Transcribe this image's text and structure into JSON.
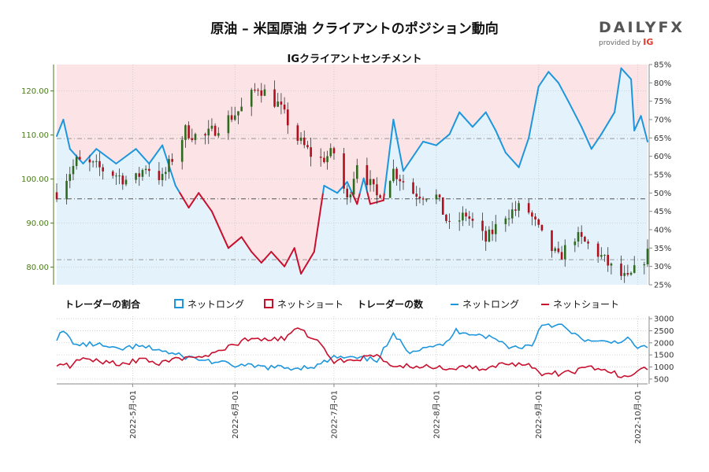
{
  "header": {
    "title": "原油 – 米国原油 クライアントのポジション動向",
    "subtitle": "IGクライアントセンチメント",
    "logo_main": "DAILYFX",
    "logo_sub": "provided by",
    "logo_ig": "IG"
  },
  "legend": {
    "ratio_heading": "トレーダーの割合",
    "count_heading": "トレーダーの数",
    "net_long": "ネットロング",
    "net_short": "ネットショート"
  },
  "colors": {
    "long": "#1e96dc",
    "short": "#c8102e",
    "long_fill": "#e3f2fb",
    "short_fill": "#fbe3e6",
    "price_axis": "#4a7a1c"
  },
  "chart_data": [
    {
      "type": "candlestick",
      "name": "price",
      "x_range": [
        "2022-04-08",
        "2022-10-04"
      ],
      "ylim": [
        76,
        126
      ],
      "yticks": [
        "80.00",
        "90.00",
        "100.00",
        "110.00",
        "120.00"
      ],
      "ytick_values": [
        80,
        90,
        100,
        110,
        120
      ],
      "reference_lines": [
        95.5,
        81.7,
        109.2
      ],
      "anchors": [
        [
          "2022-04-08",
          97
        ],
        [
          "2022-04-14",
          104
        ],
        [
          "2022-04-19",
          103
        ],
        [
          "2022-04-26",
          101
        ],
        [
          "2022-05-01",
          99
        ],
        [
          "2022-05-05",
          103
        ],
        [
          "2022-05-10",
          100
        ],
        [
          "2022-05-17",
          111
        ],
        [
          "2022-05-22",
          109
        ],
        [
          "2022-05-27",
          112
        ],
        [
          "2022-06-03",
          116
        ],
        [
          "2022-06-08",
          121
        ],
        [
          "2022-06-14",
          117
        ],
        [
          "2022-06-20",
          109
        ],
        [
          "2022-06-26",
          104
        ],
        [
          "2022-07-01",
          106
        ],
        [
          "2022-07-05",
          95
        ],
        [
          "2022-07-08",
          104
        ],
        [
          "2022-07-14",
          96
        ],
        [
          "2022-07-19",
          102
        ],
        [
          "2022-07-25",
          97
        ],
        [
          "2022-08-01",
          96
        ],
        [
          "2022-08-05",
          89
        ],
        [
          "2022-08-10",
          92
        ],
        [
          "2022-08-16",
          86
        ],
        [
          "2022-08-22",
          92
        ],
        [
          "2022-08-28",
          94
        ],
        [
          "2022-09-02",
          87
        ],
        [
          "2022-09-07",
          82
        ],
        [
          "2022-09-12",
          87
        ],
        [
          "2022-09-18",
          84
        ],
        [
          "2022-09-24",
          79
        ],
        [
          "2022-09-28",
          77
        ],
        [
          "2022-10-04",
          83
        ]
      ]
    },
    {
      "type": "line",
      "name": "ratio",
      "right_axis_range": [
        25,
        85
      ],
      "right_ticks": [
        "25%",
        "30%",
        "35%",
        "40%",
        "45%",
        "50%",
        "55%",
        "60%",
        "65%",
        "70%",
        "75%",
        "80%",
        "85%"
      ],
      "right_tick_values": [
        25,
        30,
        35,
        40,
        45,
        50,
        55,
        60,
        65,
        70,
        75,
        80,
        85
      ],
      "series": [
        {
          "name": "ネットロング",
          "unit": "%",
          "points": [
            [
              "2022-04-08",
              65.5
            ],
            [
              "2022-04-10",
              70
            ],
            [
              "2022-04-12",
              62
            ],
            [
              "2022-04-16",
              58
            ],
            [
              "2022-04-20",
              62
            ],
            [
              "2022-04-26",
              58
            ],
            [
              "2022-05-02",
              62
            ],
            [
              "2022-05-06",
              58
            ],
            [
              "2022-05-10",
              63
            ],
            [
              "2022-05-14",
              52
            ],
            [
              "2022-05-18",
              46
            ],
            [
              "2022-05-21",
              50
            ],
            [
              "2022-05-25",
              45
            ],
            [
              "2022-05-30",
              35
            ],
            [
              "2022-06-03",
              38
            ],
            [
              "2022-06-06",
              34
            ],
            [
              "2022-06-09",
              31
            ],
            [
              "2022-06-12",
              34
            ],
            [
              "2022-06-16",
              30
            ],
            [
              "2022-06-19",
              35
            ],
            [
              "2022-06-21",
              28
            ],
            [
              "2022-06-25",
              34
            ],
            [
              "2022-06-28",
              52
            ],
            [
              "2022-07-02",
              50
            ],
            [
              "2022-07-05",
              53
            ],
            [
              "2022-07-08",
              47
            ],
            [
              "2022-07-10",
              54
            ],
            [
              "2022-07-12",
              47
            ],
            [
              "2022-07-16",
              48
            ],
            [
              "2022-07-19",
              70
            ],
            [
              "2022-07-22",
              56
            ],
            [
              "2022-07-28",
              64
            ],
            [
              "2022-08-01",
              63
            ],
            [
              "2022-08-05",
              66
            ],
            [
              "2022-08-08",
              72
            ],
            [
              "2022-08-12",
              68
            ],
            [
              "2022-08-16",
              72
            ],
            [
              "2022-08-19",
              67
            ],
            [
              "2022-08-22",
              61
            ],
            [
              "2022-08-26",
              57
            ],
            [
              "2022-08-29",
              65
            ],
            [
              "2022-09-01",
              79
            ],
            [
              "2022-09-04",
              83
            ],
            [
              "2022-09-07",
              80
            ],
            [
              "2022-09-10",
              75
            ],
            [
              "2022-09-14",
              68
            ],
            [
              "2022-09-17",
              62
            ],
            [
              "2022-09-20",
              66
            ],
            [
              "2022-09-24",
              72
            ],
            [
              "2022-09-26",
              84
            ],
            [
              "2022-09-29",
              81
            ],
            [
              "2022-09-30",
              67
            ],
            [
              "2022-10-02",
              71
            ],
            [
              "2022-10-04",
              64
            ]
          ]
        },
        {
          "name": "ネットショート",
          "unit": "%",
          "derived": "100 - ネットロング"
        }
      ]
    },
    {
      "type": "line",
      "name": "trader_count",
      "ylim": [
        300,
        3100
      ],
      "yticks": [
        "500",
        "1000",
        "1500",
        "2000",
        "2500",
        "3000"
      ],
      "ytick_values": [
        500,
        1000,
        1500,
        2000,
        2500,
        3000
      ],
      "series": [
        {
          "name": "ネットロング",
          "points": [
            [
              "2022-04-08",
              2200
            ],
            [
              "2022-04-10",
              2450
            ],
            [
              "2022-04-14",
              1900
            ],
            [
              "2022-04-20",
              1950
            ],
            [
              "2022-04-26",
              1700
            ],
            [
              "2022-05-02",
              1850
            ],
            [
              "2022-05-08",
              1750
            ],
            [
              "2022-05-14",
              1500
            ],
            [
              "2022-05-20",
              1350
            ],
            [
              "2022-05-26",
              1200
            ],
            [
              "2022-06-02",
              1050
            ],
            [
              "2022-06-10",
              1000
            ],
            [
              "2022-06-18",
              950
            ],
            [
              "2022-06-26",
              1050
            ],
            [
              "2022-07-01",
              1400
            ],
            [
              "2022-07-08",
              1350
            ],
            [
              "2022-07-14",
              1300
            ],
            [
              "2022-07-19",
              2300
            ],
            [
              "2022-07-24",
              1650
            ],
            [
              "2022-07-30",
              1900
            ],
            [
              "2022-08-03",
              1850
            ],
            [
              "2022-08-07",
              2500
            ],
            [
              "2022-08-12",
              2400
            ],
            [
              "2022-08-18",
              2200
            ],
            [
              "2022-08-24",
              1800
            ],
            [
              "2022-08-30",
              1900
            ],
            [
              "2022-09-02",
              2800
            ],
            [
              "2022-09-08",
              2700
            ],
            [
              "2022-09-12",
              2300
            ],
            [
              "2022-09-18",
              2000
            ],
            [
              "2022-09-24",
              2050
            ],
            [
              "2022-09-28",
              2150
            ],
            [
              "2022-09-30",
              1850
            ],
            [
              "2022-10-04",
              1800
            ]
          ]
        },
        {
          "name": "ネットショート",
          "points": [
            [
              "2022-04-08",
              1150
            ],
            [
              "2022-04-12",
              1050
            ],
            [
              "2022-04-16",
              1350
            ],
            [
              "2022-04-22",
              1200
            ],
            [
              "2022-04-28",
              1150
            ],
            [
              "2022-05-04",
              1300
            ],
            [
              "2022-05-10",
              1150
            ],
            [
              "2022-05-16",
              1350
            ],
            [
              "2022-05-22",
              1450
            ],
            [
              "2022-05-28",
              1700
            ],
            [
              "2022-06-04",
              2100
            ],
            [
              "2022-06-10",
              2150
            ],
            [
              "2022-06-16",
              2200
            ],
            [
              "2022-06-20",
              2600
            ],
            [
              "2022-06-26",
              2050
            ],
            [
              "2022-07-01",
              1250
            ],
            [
              "2022-07-08",
              1350
            ],
            [
              "2022-07-14",
              1450
            ],
            [
              "2022-07-19",
              1000
            ],
            [
              "2022-07-25",
              1050
            ],
            [
              "2022-08-01",
              950
            ],
            [
              "2022-08-08",
              1000
            ],
            [
              "2022-08-14",
              950
            ],
            [
              "2022-08-20",
              1050
            ],
            [
              "2022-08-26",
              1150
            ],
            [
              "2022-08-30",
              1050
            ],
            [
              "2022-09-02",
              700
            ],
            [
              "2022-09-10",
              750
            ],
            [
              "2022-09-16",
              1000
            ],
            [
              "2022-09-22",
              800
            ],
            [
              "2022-09-28",
              600
            ],
            [
              "2022-10-01",
              900
            ],
            [
              "2022-10-04",
              950
            ]
          ]
        }
      ]
    }
  ],
  "x_axis": {
    "ticks": [
      "2022-5月-01",
      "2022-6月-01",
      "2022-7月-01",
      "2022-8月-01",
      "2022-9月-01",
      "2022-10月-01"
    ],
    "tick_dates": [
      "2022-05-01",
      "2022-06-01",
      "2022-07-01",
      "2022-08-01",
      "2022-09-01",
      "2022-10-01"
    ]
  }
}
